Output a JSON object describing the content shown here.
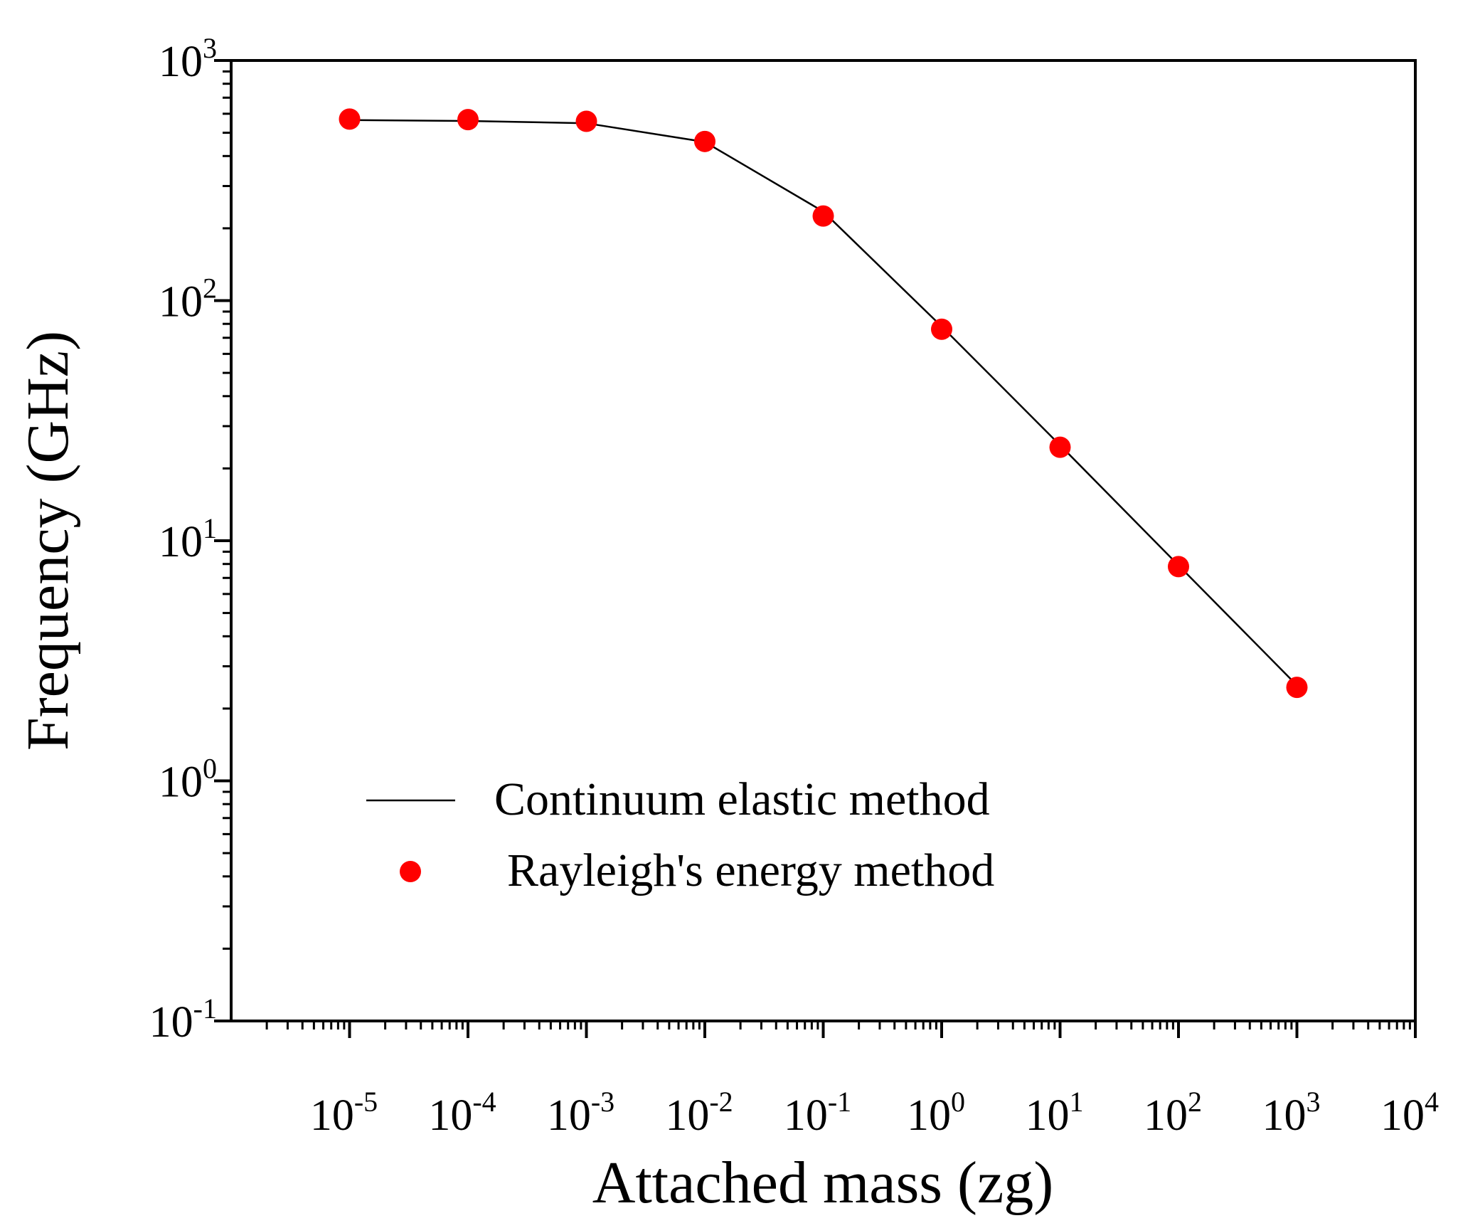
{
  "chart_data": {
    "type": "line",
    "title": "",
    "xlabel": "Attached mass (zg)",
    "ylabel": "Frequency (GHz)",
    "xscale": "log",
    "yscale": "log",
    "xlim": [
      1e-06,
      10000
    ],
    "ylim": [
      0.1,
      1000
    ],
    "x_ticks": [
      {
        "value": 1e-05,
        "base": "10",
        "exp": "-5"
      },
      {
        "value": 0.0001,
        "base": "10",
        "exp": "-4"
      },
      {
        "value": 0.001,
        "base": "10",
        "exp": "-3"
      },
      {
        "value": 0.01,
        "base": "10",
        "exp": "-2"
      },
      {
        "value": 0.1,
        "base": "10",
        "exp": "-1"
      },
      {
        "value": 1,
        "base": "10",
        "exp": "0"
      },
      {
        "value": 10,
        "base": "10",
        "exp": "1"
      },
      {
        "value": 100,
        "base": "10",
        "exp": "2"
      },
      {
        "value": 1000,
        "base": "10",
        "exp": "3"
      },
      {
        "value": 10000,
        "base": "10",
        "exp": "4"
      }
    ],
    "y_ticks": [
      {
        "value": 0.1,
        "base": "10",
        "exp": "-1"
      },
      {
        "value": 1,
        "base": "10",
        "exp": "0"
      },
      {
        "value": 10,
        "base": "10",
        "exp": "1"
      },
      {
        "value": 100,
        "base": "10",
        "exp": "2"
      },
      {
        "value": 1000,
        "base": "10",
        "exp": "3"
      }
    ],
    "series": [
      {
        "name": "Continuum elastic method",
        "style": "line",
        "color": "#000000",
        "x": [
          1e-05,
          0.0001,
          0.001,
          0.01,
          0.1,
          1,
          10,
          100,
          1000
        ],
        "values": [
          565,
          560,
          548,
          458,
          235,
          78,
          25,
          7.9,
          2.5
        ]
      },
      {
        "name": "Rayleigh's energy method",
        "style": "marker",
        "color": "#ff0000",
        "x": [
          1e-05,
          0.0001,
          0.001,
          0.01,
          0.1,
          1,
          10,
          100,
          1000
        ],
        "values": [
          570,
          567,
          558,
          460,
          225,
          76,
          24.5,
          7.8,
          2.45
        ]
      }
    ],
    "legend": {
      "position": "lower-left",
      "entries": [
        "Continuum elastic method",
        "Rayleigh's energy method"
      ]
    },
    "grid": false
  }
}
